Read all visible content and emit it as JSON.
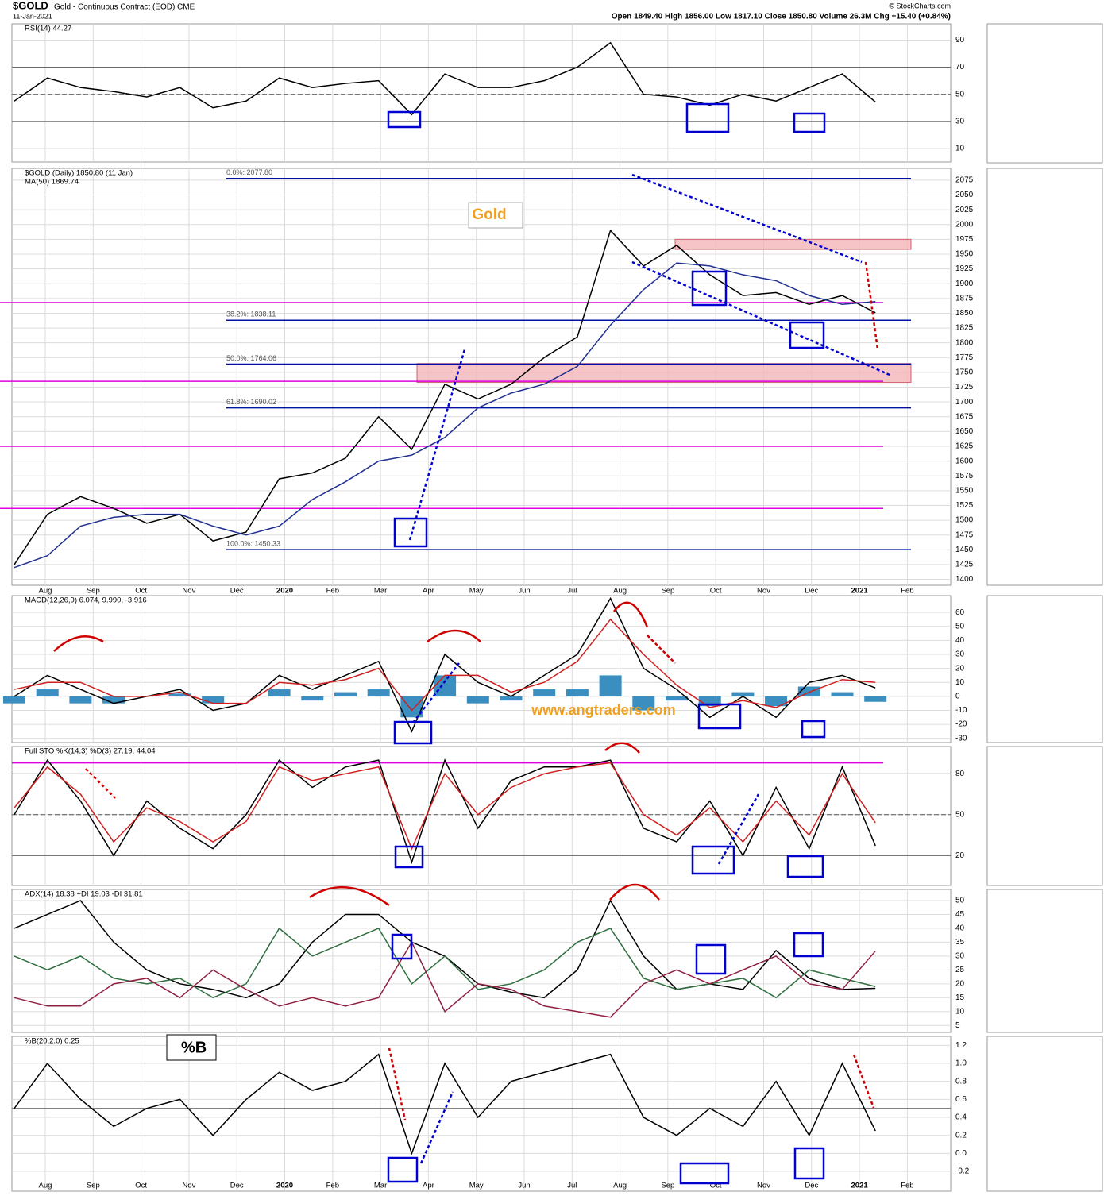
{
  "header": {
    "symbol": "$GOLD",
    "description": "Gold - Continuous Contract (EOD) CME",
    "date": "11-Jan-2021",
    "quote": "Open 1849.40  High 1856.00  Low 1817.10  Close 1850.80  Volume 26.3M  Chg +15.40 (+0.84%)",
    "source": "© StockCharts.com"
  },
  "annotations": {
    "gold": "Gold",
    "site": "www.angtraders.com",
    "pctb": "%B"
  },
  "x_axis": {
    "labels": [
      "Aug",
      "Sep",
      "Oct",
      "Nov",
      "Dec",
      "2020",
      "Feb",
      "Mar",
      "Apr",
      "May",
      "Jun",
      "Jul",
      "Aug",
      "Sep",
      "Oct",
      "Nov",
      "Dec",
      "2021",
      "Feb"
    ]
  },
  "chart_data": [
    {
      "type": "line",
      "title": "RSI(14) 44.27",
      "ylim": [
        0,
        102
      ],
      "yticks": [
        10,
        30,
        50,
        70,
        90
      ],
      "hlines": [
        30,
        50,
        70
      ],
      "series": [
        {
          "color": "#000000",
          "values": [
            45,
            62,
            55,
            52,
            48,
            55,
            40,
            45,
            62,
            55,
            58,
            60,
            35,
            65,
            55,
            55,
            60,
            70,
            88,
            50,
            48,
            42,
            50,
            45,
            55,
            65,
            44.27
          ]
        }
      ]
    },
    {
      "type": "line",
      "title": "$GOLD (Daily) 1850.80 (11 Jan)",
      "subtitle": "MA(50) 1869.74",
      "ylim": [
        1390,
        2095
      ],
      "yticks": [
        1400,
        1425,
        1450,
        1475,
        1500,
        1525,
        1550,
        1575,
        1600,
        1625,
        1650,
        1675,
        1700,
        1725,
        1750,
        1775,
        1800,
        1825,
        1850,
        1875,
        1900,
        1925,
        1950,
        1975,
        2000,
        2025,
        2050,
        2075
      ],
      "fib_levels": [
        {
          "value": 2077.8,
          "label": "0.0%: 2077.80"
        },
        {
          "value": 1838.11,
          "label": "38.2%: 1838.11"
        },
        {
          "value": 1764.06,
          "label": "50.0%: 1764.06"
        },
        {
          "value": 1690.02,
          "label": "61.8%: 1690.02"
        },
        {
          "value": 1450.33,
          "label": "100.0%: 1450.33"
        }
      ],
      "support_levels": [
        1868,
        1735,
        1625,
        1520
      ],
      "support_color": "#e000e0",
      "zones": [
        [
          1958,
          1975
        ],
        [
          1733,
          1765
        ]
      ],
      "series": [
        {
          "color": "#000000",
          "values": [
            1425,
            1510,
            1540,
            1520,
            1495,
            1510,
            1465,
            1480,
            1570,
            1580,
            1605,
            1675,
            1620,
            1730,
            1705,
            1730,
            1775,
            1810,
            1990,
            1930,
            1965,
            1915,
            1880,
            1885,
            1865,
            1880,
            1850.8
          ]
        },
        {
          "color": "#1f2f8f",
          "values": [
            1420,
            1440,
            1490,
            1505,
            1510,
            1510,
            1490,
            1475,
            1490,
            1535,
            1565,
            1600,
            1610,
            1640,
            1690,
            1715,
            1730,
            1760,
            1830,
            1890,
            1935,
            1930,
            1915,
            1905,
            1880,
            1865,
            1869.74
          ]
        }
      ]
    },
    {
      "type": "line",
      "title": "MACD(12,26,9) 6.074, 9.990, -3.916",
      "ylim": [
        -33,
        72
      ],
      "yticks": [
        -30,
        -20,
        -10,
        0,
        10,
        20,
        30,
        40,
        50,
        60
      ],
      "series": [
        {
          "kind": "bar",
          "color": "#3a8fc0",
          "values": [
            -5,
            5,
            -5,
            -5,
            0,
            2,
            -5,
            0,
            5,
            -3,
            3,
            5,
            -15,
            15,
            -5,
            -3,
            5,
            5,
            15,
            -10,
            -3,
            -7,
            3,
            -7,
            7,
            3,
            -3.916
          ]
        },
        {
          "color": "#000000",
          "values": [
            0,
            15,
            5,
            -5,
            0,
            5,
            -10,
            -5,
            15,
            5,
            15,
            25,
            -25,
            30,
            10,
            0,
            15,
            30,
            70,
            20,
            5,
            -15,
            0,
            -15,
            10,
            15,
            6.074
          ]
        },
        {
          "color": "#d02020",
          "values": [
            5,
            10,
            10,
            0,
            0,
            3,
            -5,
            -5,
            10,
            8,
            12,
            20,
            -10,
            15,
            15,
            3,
            10,
            25,
            55,
            30,
            8,
            -8,
            -3,
            -8,
            3,
            12,
            9.99
          ]
        }
      ]
    },
    {
      "type": "line",
      "title": "Full STO %K(14,3) %D(3) 27.19, 44.04",
      "ylim": [
        -2,
        100
      ],
      "yticks": [
        20,
        50,
        80
      ],
      "hlines": [
        20,
        50,
        80
      ],
      "support_levels": [
        88
      ],
      "support_color": "#e000e0",
      "series": [
        {
          "color": "#000000",
          "values": [
            50,
            90,
            60,
            20,
            60,
            40,
            25,
            50,
            90,
            70,
            85,
            90,
            15,
            90,
            40,
            75,
            85,
            85,
            90,
            40,
            30,
            60,
            20,
            70,
            25,
            85,
            27.19
          ]
        },
        {
          "color": "#d02020",
          "values": [
            55,
            85,
            65,
            30,
            55,
            45,
            30,
            45,
            85,
            75,
            80,
            85,
            25,
            80,
            50,
            70,
            80,
            85,
            88,
            50,
            35,
            55,
            30,
            60,
            35,
            80,
            44.04
          ]
        }
      ]
    },
    {
      "type": "line",
      "title": "ADX(14) 18.38 +DI 19.03 -DI 31.81",
      "ylim": [
        2.5,
        54
      ],
      "yticks": [
        5,
        10,
        15,
        20,
        25,
        30,
        35,
        40,
        45,
        50
      ],
      "series": [
        {
          "color": "#000000",
          "values": [
            40,
            45,
            50,
            35,
            25,
            20,
            18,
            15,
            20,
            35,
            45,
            45,
            35,
            30,
            20,
            17,
            15,
            25,
            50,
            30,
            18,
            20,
            18,
            32,
            22,
            18,
            18.38
          ]
        },
        {
          "color": "#2f6f3f",
          "values": [
            30,
            25,
            30,
            22,
            20,
            22,
            15,
            20,
            40,
            30,
            35,
            40,
            20,
            30,
            18,
            20,
            25,
            35,
            40,
            22,
            18,
            20,
            22,
            15,
            25,
            22,
            19.03
          ]
        },
        {
          "color": "#8f2040",
          "values": [
            15,
            12,
            12,
            20,
            22,
            15,
            25,
            18,
            12,
            15,
            12,
            15,
            35,
            10,
            20,
            18,
            12,
            10,
            8,
            20,
            25,
            20,
            25,
            30,
            20,
            18,
            31.81
          ]
        }
      ]
    },
    {
      "type": "line",
      "title": "%B(20,2.0) 0.25",
      "ylim": [
        -0.42,
        1.3
      ],
      "yticks": [
        -0.2,
        {
          "value": 0,
          "label": "0.0"
        },
        0.2,
        0.4,
        0.6,
        0.8,
        {
          "value": 1,
          "label": "1.0"
        },
        1.2
      ],
      "hlines": [
        0.5
      ],
      "series": [
        {
          "color": "#000000",
          "values": [
            0.5,
            1.0,
            0.6,
            0.3,
            0.5,
            0.6,
            0.2,
            0.6,
            0.9,
            0.7,
            0.8,
            1.1,
            0.0,
            1.0,
            0.4,
            0.8,
            0.9,
            1.0,
            1.1,
            0.4,
            0.2,
            0.5,
            0.3,
            0.8,
            0.2,
            1.0,
            0.25
          ]
        }
      ]
    }
  ]
}
